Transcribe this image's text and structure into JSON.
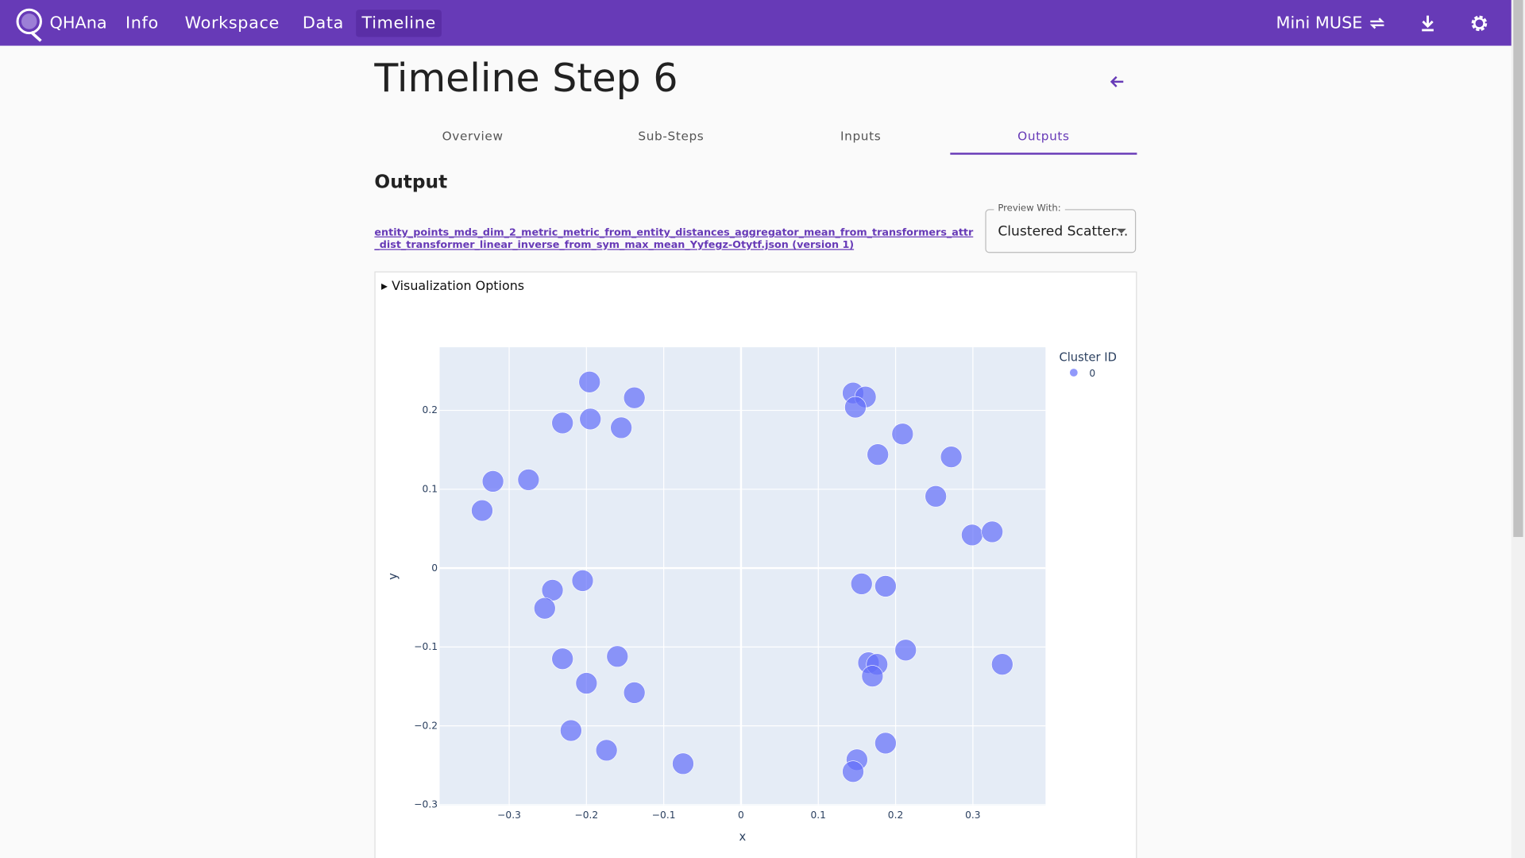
{
  "nav": {
    "brand": "QHAna",
    "items": [
      "Info",
      "Workspace",
      "Data",
      "Timeline"
    ],
    "active": 3,
    "plugin": "Mini MUSE"
  },
  "page": {
    "title": "Timeline Step 6",
    "tabs": [
      "Overview",
      "Sub-Steps",
      "Inputs",
      "Outputs"
    ],
    "active_tab": 3,
    "section": "Output",
    "file_link": "entity_points_mds_dim_2_metric_metric_from_entity_distances_aggregator_mean_from_transformers_attr_dist_transformer_linear_inverse_from_sym_max_mean_Yyfegz-Otytf.json (version 1)",
    "preview_label": "Preview With:",
    "preview_value": "Clustered Scatter...",
    "options_summary": "Visualization Options"
  },
  "chart_data": {
    "type": "scatter",
    "x_label": "x",
    "y_label": "y",
    "legend_title": "Cluster ID",
    "legend": "top-right",
    "grid": true,
    "xlim": [
      -0.39,
      0.394
    ],
    "ylim": [
      -0.301,
      0.28
    ],
    "xticks": [
      {
        "value": -0.3,
        "label": "−0.3"
      },
      {
        "value": -0.2,
        "label": "−0.2"
      },
      {
        "value": -0.1,
        "label": "−0.1"
      },
      0,
      0.1,
      0.2,
      0.3
    ],
    "yticks": [
      {
        "value": -0.3,
        "label": "−0.3"
      },
      {
        "value": -0.2,
        "label": "−0.2"
      },
      {
        "value": -0.1,
        "label": "−0.1"
      },
      0,
      0.1,
      0.2
    ],
    "x": [
      -0.196,
      -0.138,
      -0.231,
      -0.195,
      -0.155,
      -0.321,
      -0.275,
      -0.335,
      -0.205,
      -0.244,
      -0.254,
      -0.231,
      -0.16,
      -0.2,
      -0.138,
      -0.22,
      -0.174,
      -0.075,
      0.145,
      0.161,
      0.148,
      0.209,
      0.177,
      0.272,
      0.252,
      0.299,
      0.325,
      0.156,
      0.187,
      0.213,
      0.165,
      0.176,
      0.17,
      0.338,
      0.187,
      0.15,
      0.145
    ],
    "series": [
      {
        "name": "0",
        "color": "#636efa",
        "values": [
          0.236,
          0.216,
          0.184,
          0.189,
          0.178,
          0.11,
          0.112,
          0.073,
          -0.016,
          -0.028,
          -0.051,
          -0.115,
          -0.112,
          -0.146,
          -0.158,
          -0.206,
          -0.231,
          -0.248,
          0.222,
          0.217,
          0.204,
          0.17,
          0.144,
          0.141,
          0.091,
          0.042,
          0.046,
          -0.02,
          -0.023,
          -0.104,
          -0.12,
          -0.122,
          -0.137,
          -0.122,
          -0.222,
          -0.243,
          -0.258
        ]
      }
    ]
  }
}
